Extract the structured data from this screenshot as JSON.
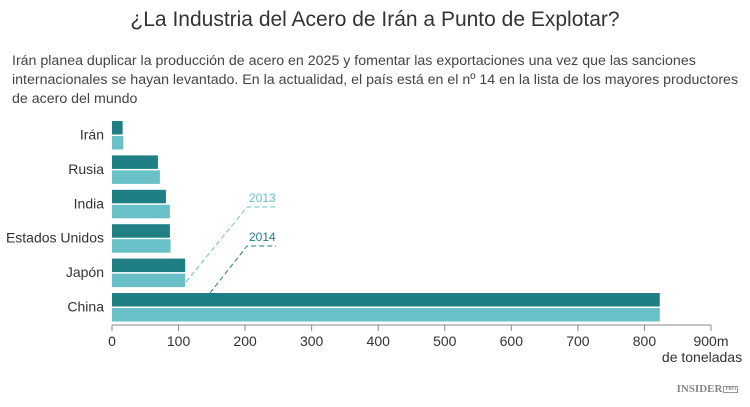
{
  "chart_data": {
    "type": "bar",
    "orientation": "horizontal",
    "title": "¿La Industria del Acero de Irán a Punto de Explotar?",
    "subtitle": "Irán planea duplicar la producción de acero en 2025 y fomentar las exportaciones una vez que las sanciones internacionales se hayan levantado. En la actualidad, el país está en el nº 14 en la lista de los mayores productores de acero del mundo",
    "categories": [
      "Irán",
      "Rusia",
      "India",
      "Estados Unidos",
      "Japón",
      "China"
    ],
    "series": [
      {
        "name": "2014",
        "color": "#1f7f84",
        "values": [
          16,
          69,
          81,
          87,
          110,
          823
        ]
      },
      {
        "name": "2013",
        "color": "#69c0c9",
        "values": [
          17,
          72,
          87,
          88,
          110,
          823
        ]
      }
    ],
    "xlim": [
      0,
      900
    ],
    "xticks": [
      "0",
      "100",
      "200",
      "300",
      "400",
      "500",
      "600",
      "700",
      "800",
      "900m"
    ],
    "xlabel": "de toneladas",
    "grid": false,
    "legend": "inline-annotations"
  },
  "brand": {
    "name": "INSIDER",
    "tag": "PRO"
  }
}
